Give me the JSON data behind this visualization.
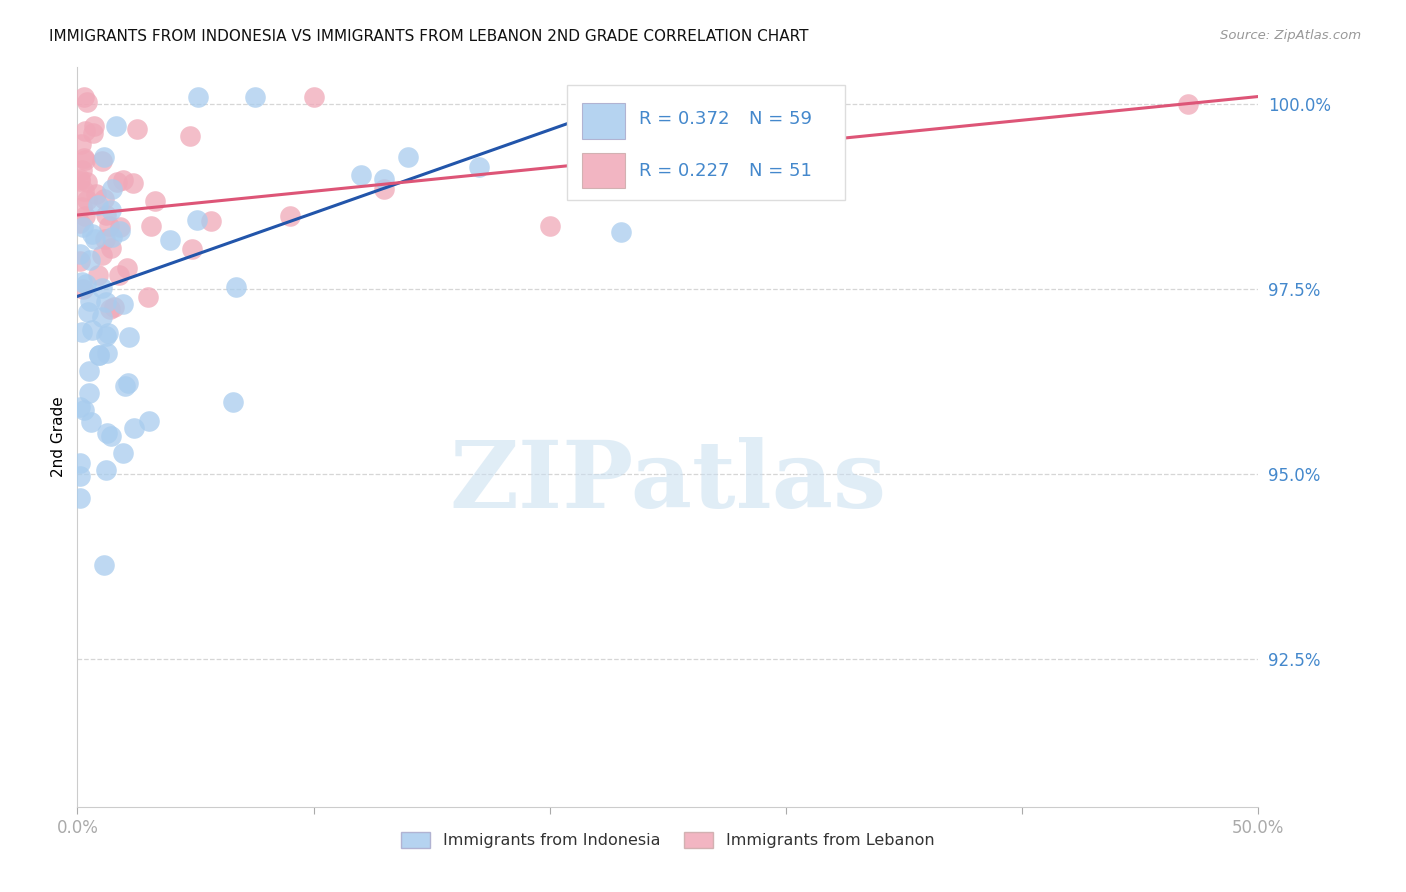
{
  "title": "IMMIGRANTS FROM INDONESIA VS IMMIGRANTS FROM LEBANON 2ND GRADE CORRELATION CHART",
  "source": "Source: ZipAtlas.com",
  "ylabel": "2nd Grade",
  "legend_label1": "Immigrants from Indonesia",
  "legend_label2": "Immigrants from Lebanon",
  "R1": 0.372,
  "N1": 59,
  "R2": 0.227,
  "N2": 51,
  "xlim": [
    0.0,
    0.5
  ],
  "ylim": [
    0.905,
    1.005
  ],
  "xticks": [
    0.0,
    0.1,
    0.2,
    0.3,
    0.4,
    0.5
  ],
  "xtick_labels": [
    "0.0%",
    "",
    "",
    "",
    "",
    "50.0%"
  ],
  "yticks": [
    0.925,
    0.95,
    0.975,
    1.0
  ],
  "ytick_labels": [
    "92.5%",
    "95.0%",
    "97.5%",
    "100.0%"
  ],
  "color_blue": "#A8CCEE",
  "color_pink": "#F0A8B8",
  "line_blue": "#2255AA",
  "line_pink": "#DD5577",
  "axis_color": "#4488CC",
  "grid_color": "#CCCCCC",
  "watermark_text": "ZIPatlas",
  "background_color": "#FFFFFF",
  "blue_line_x0": 0.0,
  "blue_line_y0": 0.974,
  "blue_line_x1": 0.24,
  "blue_line_y1": 1.001,
  "pink_line_x0": 0.0,
  "pink_line_y0": 0.985,
  "pink_line_x1": 0.5,
  "pink_line_y1": 1.001
}
